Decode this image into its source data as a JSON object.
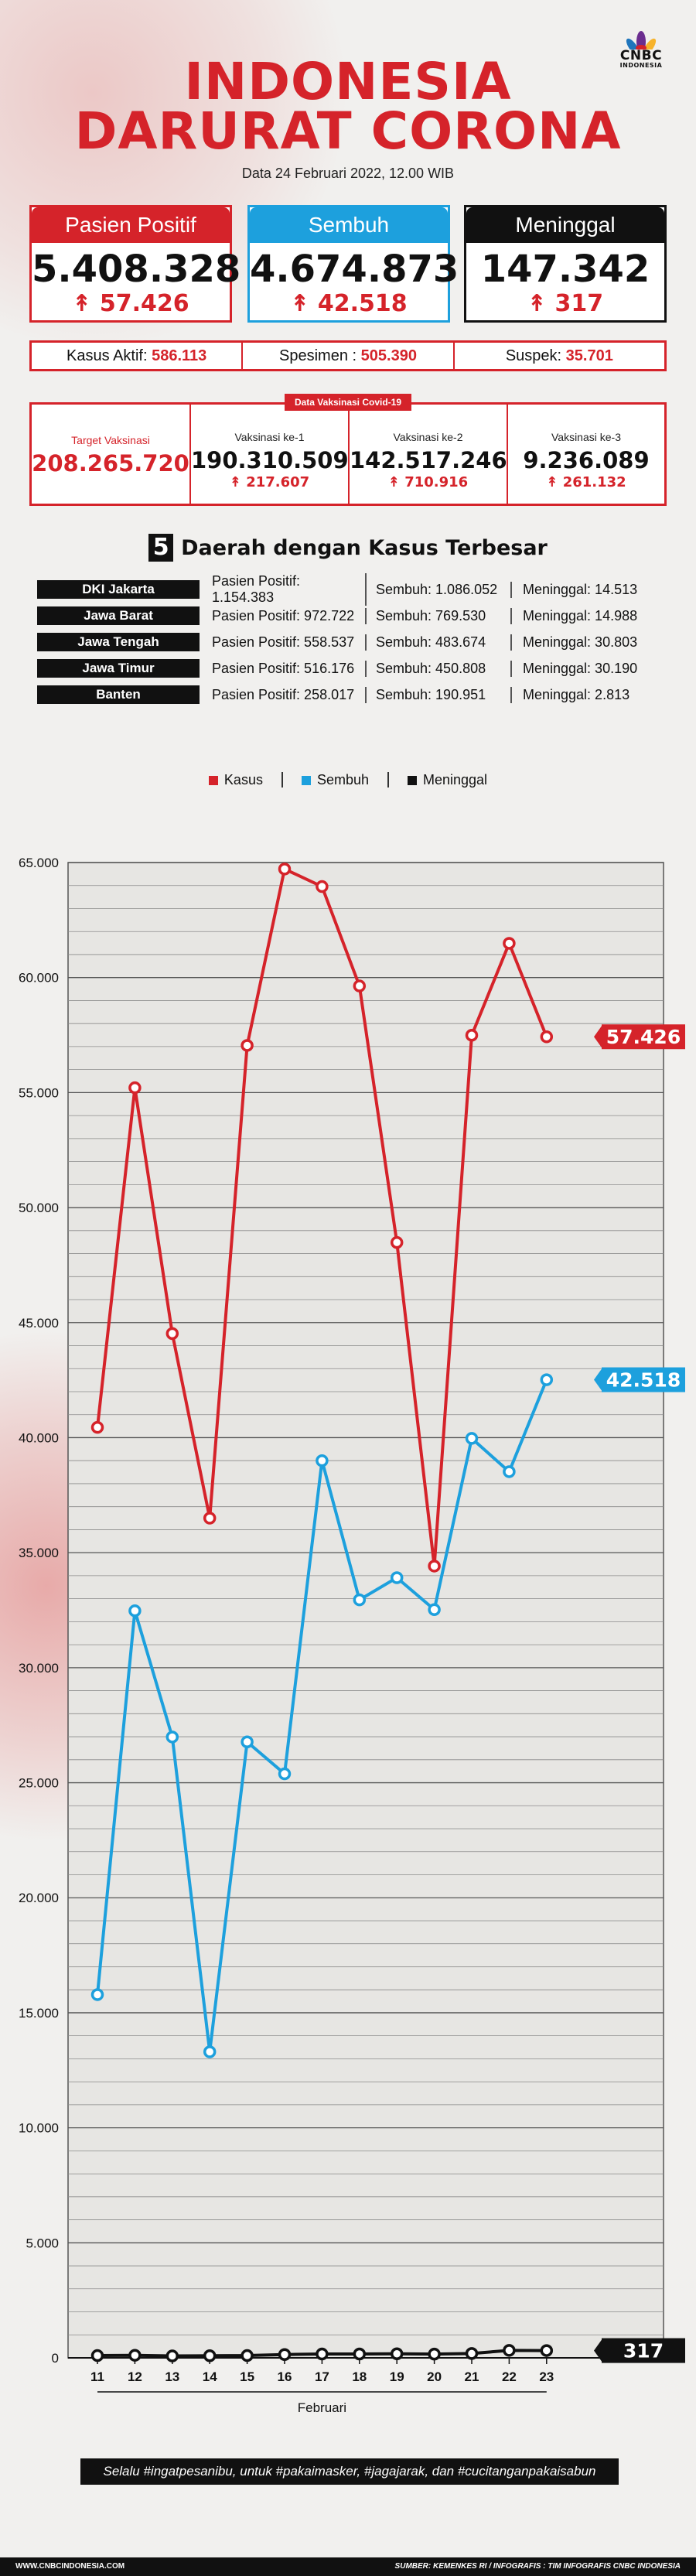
{
  "header": {
    "logo_line1": "CNBC",
    "logo_line2": "INDONESIA",
    "title_line1": "INDONESIA",
    "title_line2": "DARURAT CORONA",
    "date": "Data 24 Februari 2022, 12.00 WIB"
  },
  "stats": {
    "positif": {
      "label": "Pasien Positif",
      "value": "5.408.328",
      "increase": "57.426"
    },
    "sembuh": {
      "label": "Sembuh",
      "value": "4.674.873",
      "increase": "42.518"
    },
    "meninggal": {
      "label": "Meninggal",
      "value": "147.342",
      "increase": "317"
    }
  },
  "summary": {
    "aktif_label": "Kasus Aktif:",
    "aktif_value": "586.113",
    "spesimen_label": "Spesimen :",
    "spesimen_value": "505.390",
    "suspek_label": "Suspek:",
    "suspek_value": "35.701"
  },
  "vaksinasi": {
    "tag": "Data Vaksinasi Covid-19",
    "target_label": "Target Vaksinasi",
    "target_value": "208.265.720",
    "v1_label": "Vaksinasi ke-1",
    "v1_value": "190.310.509",
    "v1_increase": "217.607",
    "v2_label": "Vaksinasi ke-2",
    "v2_value": "142.517.246",
    "v2_increase": "710.916",
    "v3_label": "Vaksinasi ke-3",
    "v3_value": "9.236.089",
    "v3_increase": "261.132"
  },
  "top5": {
    "number": "5",
    "title": "Daerah dengan Kasus Terbesar",
    "rows": [
      {
        "name": "DKI Jakarta",
        "positif": "Pasien Positif: 1.154.383",
        "sembuh": "Sembuh: 1.086.052",
        "meninggal": "Meninggal: 14.513"
      },
      {
        "name": "Jawa Barat",
        "positif": "Pasien Positif: 972.722",
        "sembuh": "Sembuh: 769.530",
        "meninggal": "Meninggal: 14.988"
      },
      {
        "name": "Jawa Tengah",
        "positif": "Pasien Positif: 558.537",
        "sembuh": "Sembuh: 483.674",
        "meninggal": "Meninggal: 30.803"
      },
      {
        "name": "Jawa Timur",
        "positif": "Pasien Positif: 516.176",
        "sembuh": "Sembuh: 450.808",
        "meninggal": "Meninggal: 30.190"
      },
      {
        "name": "Banten",
        "positif": "Pasien Positif: 258.017",
        "sembuh": "Sembuh: 190.951",
        "meninggal": "Meninggal: 2.813"
      }
    ]
  },
  "chart_data": {
    "type": "line",
    "title": "",
    "xlabel": "Februari",
    "ylabel": "",
    "x": [
      "11",
      "12",
      "13",
      "14",
      "15",
      "16",
      "17",
      "18",
      "19",
      "20",
      "21",
      "22",
      "23"
    ],
    "ylim": [
      0,
      65000
    ],
    "yticks": [
      0,
      5000,
      10000,
      15000,
      20000,
      25000,
      30000,
      35000,
      40000,
      45000,
      50000,
      55000,
      60000,
      65000
    ],
    "ytick_labels": [
      "0",
      "5.000",
      "10.000",
      "15.000",
      "20.000",
      "25.000",
      "30.000",
      "35.000",
      "40.000",
      "45.000",
      "50.000",
      "55.000",
      "60.000",
      "65.000"
    ],
    "grid": true,
    "legend_position": "top-center",
    "series": [
      {
        "name": "Kasus",
        "color": "#d5232a",
        "values": [
          40447,
          55209,
          44526,
          36501,
          57049,
          64718,
          63956,
          59635,
          48484,
          34418,
          57491,
          61488,
          57426
        ],
        "end_label": "57.426"
      },
      {
        "name": "Sembuh",
        "color": "#1da0dd",
        "values": [
          15789,
          32474,
          26987,
          13303,
          26774,
          25386,
          38999,
          32950,
          33913,
          32524,
          39968,
          38521,
          42518
        ],
        "end_label": "42.518"
      },
      {
        "name": "Meninggal",
        "color": "#111111",
        "values": [
          100,
          111,
          83,
          93,
          99,
          143,
          167,
          168,
          177,
          163,
          189,
          325,
          317
        ],
        "end_label": "317"
      }
    ]
  },
  "footer": {
    "slogan": "Selalu #ingatpesanibu, untuk #pakaimasker, #jagajarak, dan #cucitanganpakaisabun",
    "site": "WWW.CNBCINDONESIA.COM",
    "source": "SUMBER: KEMENKES RI / INFOGRAFIS : TIM INFOGRAFIS CNBC INDONESIA"
  }
}
